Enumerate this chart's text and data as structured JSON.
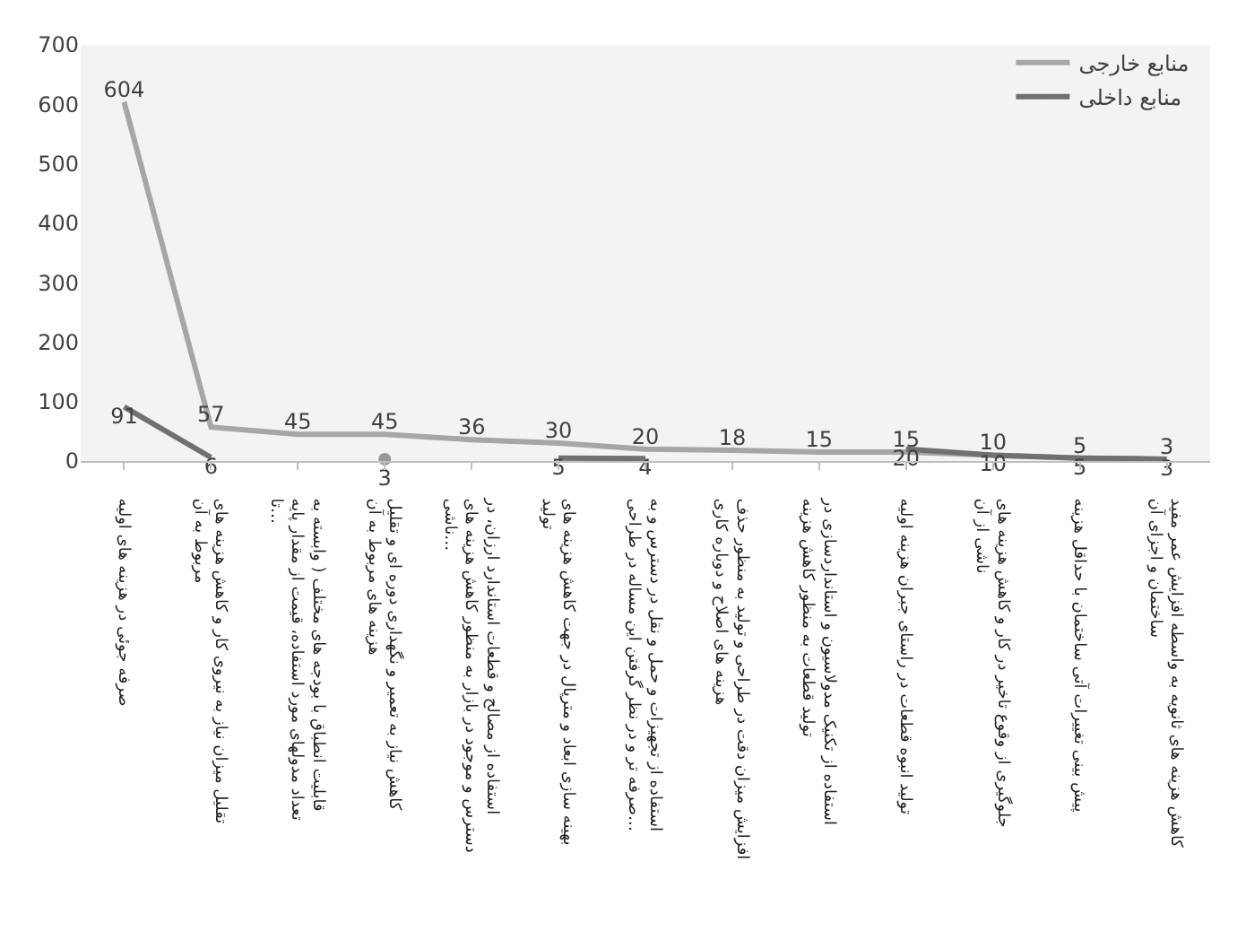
{
  "chart_data": {
    "type": "line",
    "categories": [
      "صرفه جوئی در هزینه های اولیه",
      "تقلیل میزان نیاز به نیروی کار و کاهش هزینه های مربوط به آن",
      "قابلیت انطباق با بودجه های مختلف ( وابسته به تعداد مدولهای مورد استفاده، قیمت از مقدار پایه تا…",
      "کاهش نیاز به تعمیر و نگهداری دوره ای و تقلیل هزینه های مربوط به آن",
      "استفاده از مصالح و قطعات استاندارد ارزان، در دسترس و موجود در بازار به منظور کاهش هزینه های ناشی…",
      "بهینه سازی ابعاد و مترپال در جهت کاهش هزینه های تولید",
      "استفاده از تجهیزات و حمل و نقل در دسترس و به صرفه تر و در نظر گرفتن این مساله در طراحی…",
      "افزایش میزان دقت در طراحی و تولید به منظور حذف هزینه های اصلاح و دوباره کاری",
      "استفاده از تکنیک مدولاسیون و استانداردسازی در تولید قطعات به منظور کاهش هزینه",
      "تولید انبوه قطعات در راستای جبران هزینه اولیه",
      "جلوگیری از وقوع تاخیر در کار و کاهش هزینه های ناشی از آن",
      "پیش بینی تغییرات آتی ساختمان با حداقل هزینه",
      "کاهش هزینه های ثانویه به واسطه افزایش عمر مفید ساختمان و اجزای آن"
    ],
    "series": [
      {
        "name": "منابع خارجی",
        "color": "#a6a6a6",
        "values": [
          604,
          57,
          45,
          45,
          36,
          30,
          20,
          18,
          15,
          15,
          10,
          5,
          3
        ]
      },
      {
        "name": "منابع داخلی",
        "color": "#707070",
        "values": [
          91,
          6,
          null,
          3,
          null,
          5,
          4,
          null,
          null,
          20,
          10,
          5,
          3
        ]
      }
    ],
    "ylim": [
      0,
      700
    ],
    "yticks": [
      0,
      100,
      200,
      300,
      400,
      500,
      600,
      700
    ],
    "grid": false,
    "legend": "top right",
    "marker": "none",
    "line_style": "solid",
    "data_labels": true
  }
}
